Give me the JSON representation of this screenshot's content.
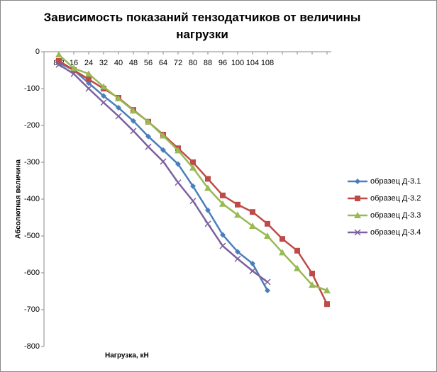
{
  "chart_data": {
    "type": "line",
    "title": "Зависимость показаний тензодатчиков от величины нагрузки",
    "x_label": "Нагрузка,  кН",
    "y_label": "Абсолютная  величина",
    "categories": [
      "8,2",
      "16",
      "24",
      "32",
      "40",
      "48",
      "56",
      "64",
      "72",
      "80",
      "88",
      "96",
      "100",
      "104",
      "108",
      null,
      null,
      null,
      null
    ],
    "ylim": [
      -800,
      0
    ],
    "yticks": [
      0,
      -100,
      -200,
      -300,
      -400,
      -500,
      -600,
      -700,
      -800
    ],
    "legend": "right",
    "series": [
      {
        "name": "образец  Д-3.1",
        "color": "#4a7ebb",
        "marker": "diamond",
        "values": [
          -30,
          -50,
          -85,
          -120,
          -152,
          -188,
          -230,
          -267,
          -305,
          -365,
          -430,
          -497,
          -543,
          -575,
          -648,
          null,
          null,
          null,
          null
        ]
      },
      {
        "name": "образец  Д-3.2",
        "color": "#be4b48",
        "marker": "square",
        "values": [
          -25,
          -50,
          -75,
          -100,
          -125,
          -158,
          -190,
          -225,
          -262,
          -300,
          -345,
          -390,
          -415,
          -435,
          -467,
          -508,
          -540,
          -602,
          -685
        ]
      },
      {
        "name": "образец  Д-3.3",
        "color": "#98b954",
        "marker": "triangle",
        "values": [
          -8,
          -45,
          -60,
          -95,
          -127,
          -160,
          -190,
          -228,
          -268,
          -315,
          -370,
          -413,
          -443,
          -473,
          -500,
          -545,
          -588,
          -633,
          -648
        ]
      },
      {
        "name": "образец  Д-3.4",
        "color": "#7d60a0",
        "marker": "x",
        "values": [
          -35,
          -60,
          -100,
          -138,
          -175,
          -215,
          -258,
          -298,
          -355,
          -405,
          -467,
          -527,
          -562,
          -595,
          -625,
          null,
          null,
          null,
          null
        ]
      }
    ]
  }
}
